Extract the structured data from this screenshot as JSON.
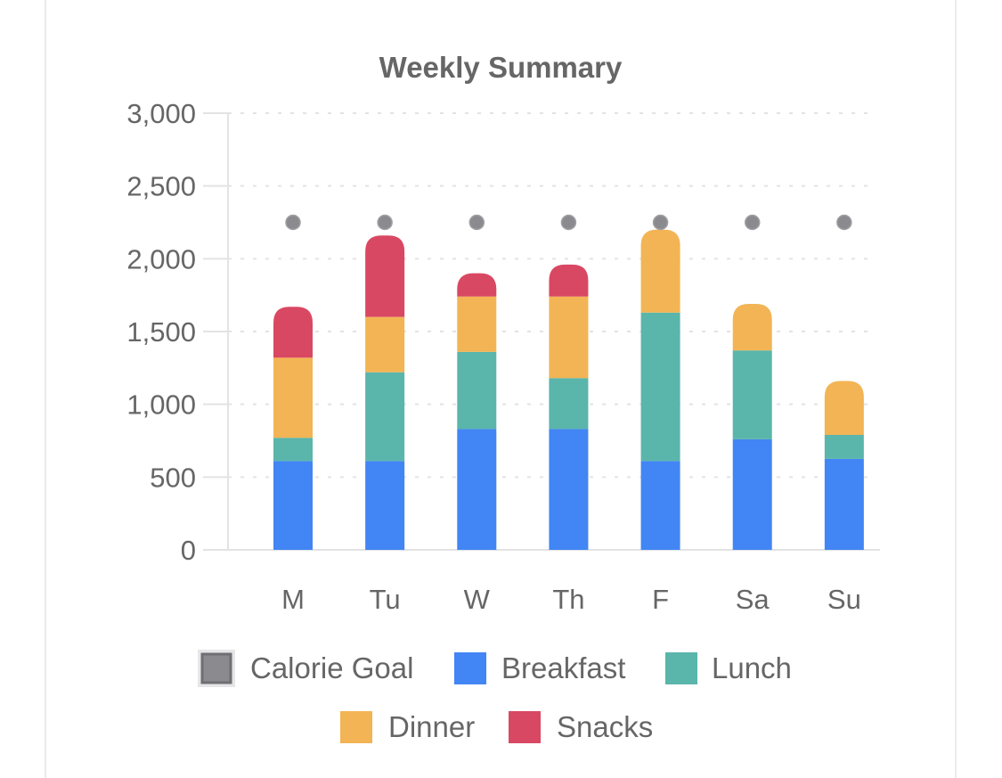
{
  "chart_data": {
    "type": "bar",
    "stacked": true,
    "title": "Weekly Summary",
    "xlabel": "",
    "ylabel": "",
    "ylim": [
      0,
      3000
    ],
    "yticks": [
      0,
      500,
      1000,
      1500,
      2000,
      2500,
      3000
    ],
    "ytick_labels": [
      "0",
      "500",
      "1,000",
      "1,500",
      "2,000",
      "2,500",
      "3,000"
    ],
    "grid": true,
    "legend_position": "bottom",
    "categories": [
      "M",
      "Tu",
      "W",
      "Th",
      "F",
      "Sa",
      "Su"
    ],
    "series": [
      {
        "name": "Breakfast",
        "color": "#4285f4",
        "values": [
          610,
          610,
          830,
          830,
          610,
          760,
          625
        ]
      },
      {
        "name": "Lunch",
        "color": "#5ab5ab",
        "values": [
          160,
          610,
          530,
          350,
          1020,
          610,
          165
        ]
      },
      {
        "name": "Dinner",
        "color": "#f2b454",
        "values": [
          550,
          380,
          380,
          560,
          570,
          320,
          370
        ]
      },
      {
        "name": "Snacks",
        "color": "#d94862",
        "values": [
          350,
          560,
          160,
          220,
          0,
          0,
          0
        ]
      }
    ],
    "goal": {
      "name": "Calorie Goal",
      "color": "#8a8a8f",
      "values": [
        2250,
        2250,
        2250,
        2250,
        2250,
        2250,
        2250
      ]
    },
    "legend": [
      "Calorie Goal",
      "Breakfast",
      "Lunch",
      "Dinner",
      "Snacks"
    ]
  }
}
